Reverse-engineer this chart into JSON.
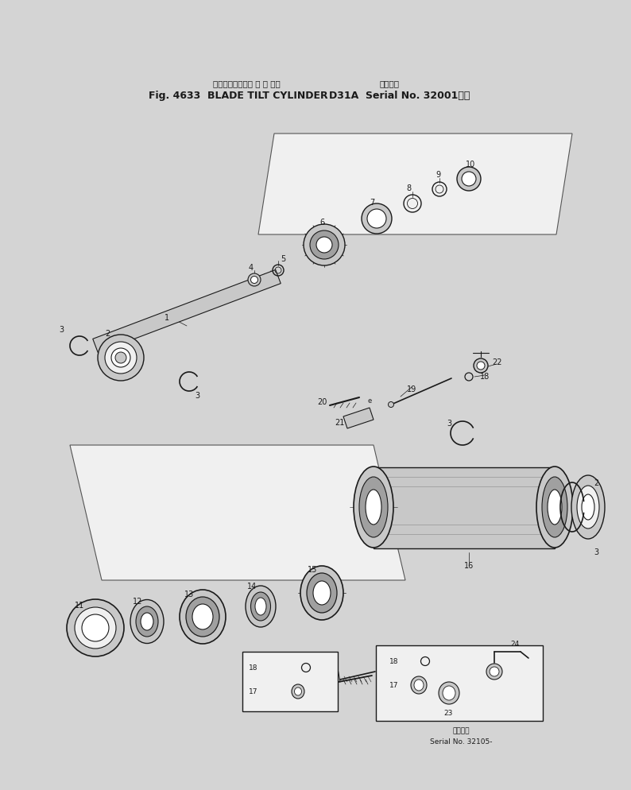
{
  "bg_color": "#d4d4d4",
  "line_color": "#1a1a1a",
  "fill_light": "#f0f0f0",
  "fill_mid": "#c8c8c8",
  "fill_dark": "#a0a0a0",
  "fig_width": 7.94,
  "fig_height": 9.94,
  "title_jp": "ブレードチルトシ リ ン ダ（",
  "title_en": "Fig. 4633  BLADE TILT CYLINDER",
  "title_r1": "通用号機",
  "title_r2": "D31A  Serial No. 32001～）",
  "serial1": "通用号機",
  "serial2": "Serial No. 32105-"
}
